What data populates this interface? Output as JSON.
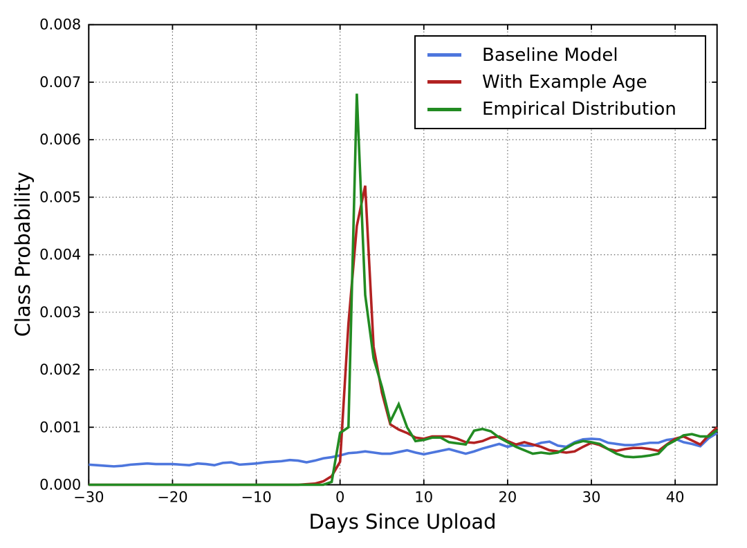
{
  "chart_data": {
    "type": "line",
    "title": "",
    "xlabel": "Days Since Upload",
    "ylabel": "Class Probability",
    "xlim": [
      -30,
      45
    ],
    "ylim": [
      0,
      0.008
    ],
    "x_ticks": [
      -30,
      -20,
      -10,
      0,
      10,
      20,
      30,
      40
    ],
    "x_tick_labels": [
      "−30",
      "−20",
      "−10",
      "0",
      "10",
      "20",
      "30",
      "40"
    ],
    "y_ticks": [
      0,
      0.001,
      0.002,
      0.003,
      0.004,
      0.005,
      0.006,
      0.007,
      0.008
    ],
    "y_tick_labels": [
      "0.000",
      "0.001",
      "0.002",
      "0.003",
      "0.004",
      "0.005",
      "0.006",
      "0.007",
      "0.008"
    ],
    "grid": {
      "visible": true,
      "style": "dotted",
      "color": "#666666"
    },
    "legend": {
      "position": "upper right",
      "border_color": "#000000",
      "background": "#ffffff"
    },
    "axis_color": "#000000",
    "x": [
      -30,
      -29,
      -28,
      -27,
      -26,
      -25,
      -24,
      -23,
      -22,
      -21,
      -20,
      -19,
      -18,
      -17,
      -16,
      -15,
      -14,
      -13,
      -12,
      -11,
      -10,
      -9,
      -8,
      -7,
      -6,
      -5,
      -4,
      -3,
      -2,
      -1,
      0,
      1,
      2,
      3,
      4,
      5,
      6,
      7,
      8,
      9,
      10,
      11,
      12,
      13,
      14,
      15,
      16,
      17,
      18,
      19,
      20,
      21,
      22,
      23,
      24,
      25,
      26,
      27,
      28,
      29,
      30,
      31,
      32,
      33,
      34,
      35,
      36,
      37,
      38,
      39,
      40,
      41,
      42,
      43,
      44,
      45
    ],
    "series": [
      {
        "name": "Baseline Model",
        "color": "#4d76dd",
        "values": [
          0.00035,
          0.00034,
          0.00033,
          0.00032,
          0.00033,
          0.00035,
          0.00036,
          0.00037,
          0.00036,
          0.00036,
          0.00036,
          0.00035,
          0.00034,
          0.00037,
          0.00036,
          0.00034,
          0.00038,
          0.00039,
          0.00035,
          0.00036,
          0.00037,
          0.00039,
          0.0004,
          0.00041,
          0.00043,
          0.00042,
          0.00039,
          0.00042,
          0.00046,
          0.00048,
          0.00051,
          0.00055,
          0.00056,
          0.00058,
          0.00056,
          0.00054,
          0.00054,
          0.00057,
          0.0006,
          0.00056,
          0.00053,
          0.00056,
          0.00059,
          0.00062,
          0.00058,
          0.00054,
          0.00058,
          0.00063,
          0.00067,
          0.00071,
          0.00066,
          0.0007,
          0.00068,
          0.00068,
          0.00073,
          0.00075,
          0.00068,
          0.00066,
          0.00074,
          0.00079,
          0.0008,
          0.00079,
          0.00073,
          0.00071,
          0.00069,
          0.00069,
          0.00071,
          0.00073,
          0.00073,
          0.00078,
          0.0008,
          0.00074,
          0.00071,
          0.00067,
          0.00081,
          0.0009
        ]
      },
      {
        "name": "With Example Age",
        "color": "#b22222",
        "values": [
          0,
          0,
          0,
          0,
          0,
          0,
          0,
          0,
          0,
          0,
          0,
          0,
          0,
          0,
          0,
          0,
          0,
          0,
          0,
          0,
          0,
          0,
          0,
          0,
          0,
          0,
          1e-05,
          2e-05,
          6e-05,
          0.00015,
          0.0004,
          0.0028,
          0.0045,
          0.0052,
          0.0024,
          0.0016,
          0.00105,
          0.00096,
          0.0009,
          0.00082,
          0.0008,
          0.00084,
          0.00084,
          0.00084,
          0.0008,
          0.00074,
          0.00073,
          0.00076,
          0.00082,
          0.00084,
          0.00076,
          0.0007,
          0.00074,
          0.0007,
          0.00066,
          0.0006,
          0.00058,
          0.00056,
          0.00058,
          0.00066,
          0.00073,
          0.00069,
          0.00062,
          0.00059,
          0.00062,
          0.00064,
          0.00064,
          0.00062,
          0.00059,
          0.0007,
          0.0008,
          0.00084,
          0.00077,
          0.0007,
          0.00086,
          0.001
        ]
      },
      {
        "name": "Empirical Distribution",
        "color": "#228b22",
        "values": [
          0,
          0,
          0,
          0,
          0,
          0,
          0,
          0,
          0,
          0,
          0,
          0,
          0,
          0,
          0,
          0,
          0,
          0,
          0,
          0,
          0,
          0,
          0,
          0,
          0,
          0,
          0,
          0,
          0,
          5e-05,
          0.0009,
          0.001,
          0.0068,
          0.0033,
          0.0022,
          0.0017,
          0.0011,
          0.0014,
          0.001,
          0.00076,
          0.00078,
          0.00082,
          0.00082,
          0.00074,
          0.00072,
          0.0007,
          0.00094,
          0.00097,
          0.00093,
          0.00082,
          0.00074,
          0.00066,
          0.0006,
          0.00054,
          0.00056,
          0.00054,
          0.00056,
          0.00064,
          0.00072,
          0.00076,
          0.00074,
          0.00071,
          0.00062,
          0.00054,
          0.00049,
          0.00048,
          0.00049,
          0.00051,
          0.00054,
          0.00069,
          0.00077,
          0.00086,
          0.00088,
          0.00084,
          0.00084,
          0.00095
        ]
      }
    ]
  }
}
